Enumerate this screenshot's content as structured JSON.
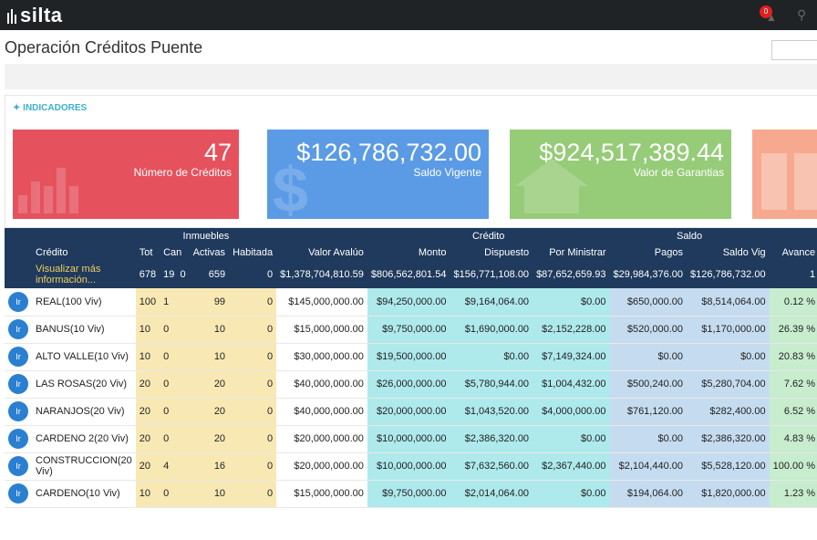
{
  "app": {
    "logo": "silta",
    "notif_count": "0"
  },
  "page": {
    "title": "Operación Créditos Puente"
  },
  "indicators": {
    "label": "INDICADORES",
    "cards": [
      {
        "value": "47",
        "label": "Número de Créditos",
        "color": "#e5525e"
      },
      {
        "value": "$126,786,732.00",
        "label": "Saldo Vigente",
        "color": "#5b9be6"
      },
      {
        "value": "$924,517,389.44",
        "label": "Valor de Garantias",
        "color": "#96cb78"
      }
    ]
  },
  "table": {
    "groups": {
      "inmuebles": "Inmuebles",
      "credito": "Crédito",
      "saldo": "Saldo"
    },
    "headers": {
      "credito": "Crédito",
      "tot": "Tot",
      "can": "Can",
      "activas": "Activas",
      "habitada": "Habitada",
      "valor": "Valor Avalúo",
      "monto": "Monto",
      "dispuesto": "Dispuesto",
      "por_ministrar": "Por Ministrar",
      "pagos": "Pagos",
      "saldo_vig": "Saldo Vig",
      "avance": "Avance"
    },
    "totals": {
      "link": "Visualizar más información...",
      "tot": "678",
      "can": "19",
      "can2": "0",
      "activas": "659",
      "habitada": "0",
      "valor": "$1,378,704,810.59",
      "monto": "$806,562,801.54",
      "dispuesto": "$156,771,108.00",
      "por_ministrar": "$87,652,659.93",
      "pagos": "$29,984,376.00",
      "saldo_vig": "$126,786,732.00",
      "avance": "1"
    },
    "rows": [
      {
        "btn": "Ir",
        "name": "REAL(100 Viv)",
        "tot": "100",
        "can": "1",
        "activas": "99",
        "habitada": "0",
        "valor": "$145,000,000.00",
        "monto": "$94,250,000.00",
        "dispuesto": "$9,164,064.00",
        "por_ministrar": "$0.00",
        "pagos": "$650,000.00",
        "saldo_vig": "$8,514,064.00",
        "avance": "0.12 %"
      },
      {
        "btn": "Ir",
        "name": "BANUS(10 Viv)",
        "tot": "10",
        "can": "0",
        "activas": "10",
        "habitada": "0",
        "valor": "$15,000,000.00",
        "monto": "$9,750,000.00",
        "dispuesto": "$1,690,000.00",
        "por_ministrar": "$2,152,228.00",
        "pagos": "$520,000.00",
        "saldo_vig": "$1,170,000.00",
        "avance": "26.39 %"
      },
      {
        "btn": "Ir",
        "name": "ALTO VALLE(10 Viv)",
        "tot": "10",
        "can": "0",
        "activas": "10",
        "habitada": "0",
        "valor": "$30,000,000.00",
        "monto": "$19,500,000.00",
        "dispuesto": "$0.00",
        "por_ministrar": "$7,149,324.00",
        "pagos": "$0.00",
        "saldo_vig": "$0.00",
        "avance": "20.83 %"
      },
      {
        "btn": "Ir",
        "name": "LAS ROSAS(20 Viv)",
        "tot": "20",
        "can": "0",
        "activas": "20",
        "habitada": "0",
        "valor": "$40,000,000.00",
        "monto": "$26,000,000.00",
        "dispuesto": "$5,780,944.00",
        "por_ministrar": "$1,004,432.00",
        "pagos": "$500,240.00",
        "saldo_vig": "$5,280,704.00",
        "avance": "7.62 %"
      },
      {
        "btn": "Ir",
        "name": "NARANJOS(20 Viv)",
        "tot": "20",
        "can": "0",
        "activas": "20",
        "habitada": "0",
        "valor": "$40,000,000.00",
        "monto": "$20,000,000.00",
        "dispuesto": "$1,043,520.00",
        "por_ministrar": "$4,000,000.00",
        "pagos": "$761,120.00",
        "saldo_vig": "$282,400.00",
        "avance": "6.52 %"
      },
      {
        "btn": "Ir",
        "name": "CARDENO 2(20 Viv)",
        "tot": "20",
        "can": "0",
        "activas": "20",
        "habitada": "0",
        "valor": "$20,000,000.00",
        "monto": "$10,000,000.00",
        "dispuesto": "$2,386,320.00",
        "por_ministrar": "$0.00",
        "pagos": "$0.00",
        "saldo_vig": "$2,386,320.00",
        "avance": "4.83 %"
      },
      {
        "btn": "Ir",
        "name": "CONSTRUCCION(20 Viv)",
        "tot": "20",
        "can": "4",
        "activas": "16",
        "habitada": "0",
        "valor": "$20,000,000.00",
        "monto": "$10,000,000.00",
        "dispuesto": "$7,632,560.00",
        "por_ministrar": "$2,367,440.00",
        "pagos": "$2,104,440.00",
        "saldo_vig": "$5,528,120.00",
        "avance": "100.00 %"
      },
      {
        "btn": "Ir",
        "name": "CARDENO(10 Viv)",
        "tot": "10",
        "can": "0",
        "activas": "10",
        "habitada": "0",
        "valor": "$15,000,000.00",
        "monto": "$9,750,000.00",
        "dispuesto": "$2,014,064.00",
        "por_ministrar": "$0.00",
        "pagos": "$194,064.00",
        "saldo_vig": "$1,820,000.00",
        "avance": "1.23 %"
      }
    ]
  }
}
